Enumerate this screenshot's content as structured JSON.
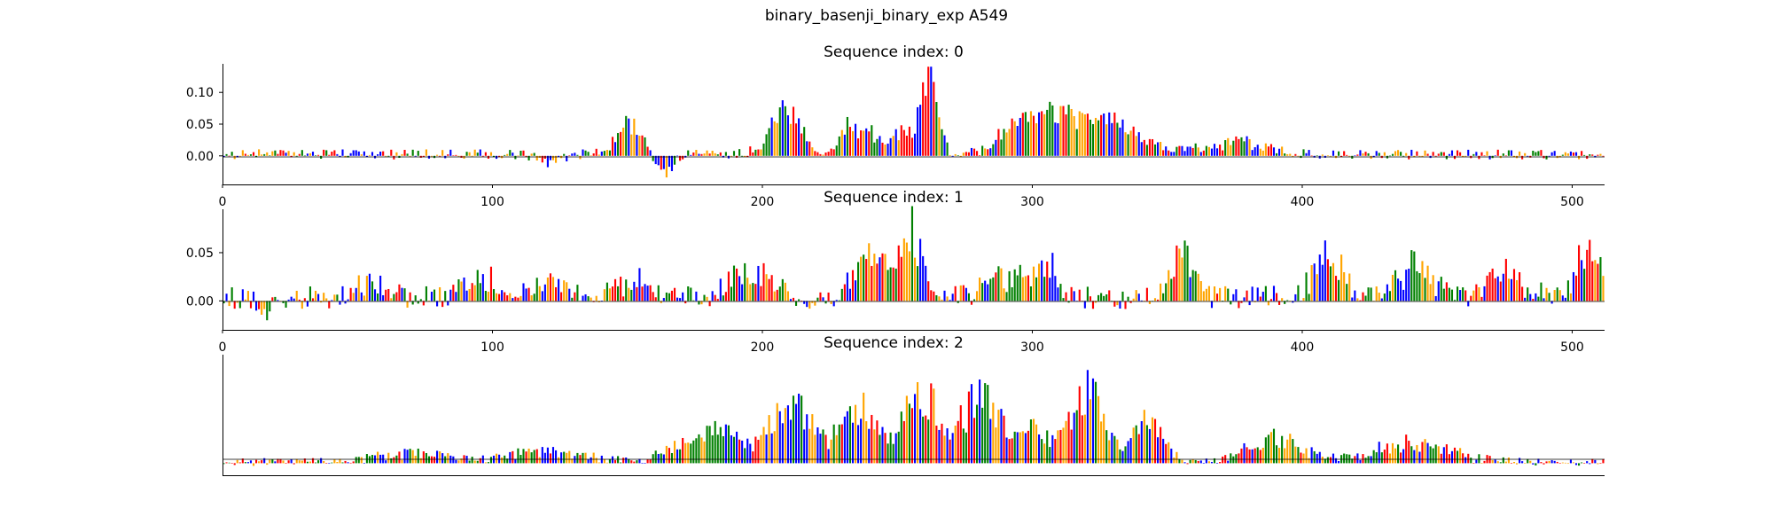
{
  "figure": {
    "title": "binary_basenji_binary_exp A549"
  },
  "colors": {
    "A": "#008000",
    "C": "#0000ff",
    "G": "#ffa500",
    "T": "#ff0000"
  },
  "chart_data": [
    {
      "type": "sequence-logo",
      "title": "Sequence index: 0",
      "xlim": [
        0,
        512
      ],
      "ylim": [
        -0.045,
        0.145
      ],
      "xticks": [
        0,
        100,
        200,
        300,
        400,
        500
      ],
      "xtick_labels": [
        "0",
        "100",
        "200",
        "300",
        "400",
        "500"
      ],
      "yticks": [
        0.0,
        0.05,
        0.1
      ],
      "ytick_labels": [
        "0.00",
        "0.05",
        "0.10"
      ],
      "peaks": [
        {
          "x": 120,
          "h": -0.018,
          "w": 6
        },
        {
          "x": 150,
          "h": 0.075,
          "w": 6
        },
        {
          "x": 163,
          "h": -0.04,
          "w": 4
        },
        {
          "x": 208,
          "h": 0.09,
          "w": 8
        },
        {
          "x": 235,
          "h": 0.07,
          "w": 8
        },
        {
          "x": 255,
          "h": 0.06,
          "w": 8
        },
        {
          "x": 262,
          "h": 0.135,
          "w": 4
        },
        {
          "x": 295,
          "h": 0.07,
          "w": 10
        },
        {
          "x": 310,
          "h": 0.075,
          "w": 10
        },
        {
          "x": 325,
          "h": 0.065,
          "w": 10
        },
        {
          "x": 340,
          "h": 0.03,
          "w": 15
        },
        {
          "x": 375,
          "h": 0.025,
          "w": 15
        }
      ],
      "base_noise": 0.008,
      "seed": 11
    },
    {
      "type": "sequence-logo",
      "title": "Sequence index: 1",
      "xlim": [
        0,
        512
      ],
      "ylim": [
        -0.03,
        0.095
      ],
      "xticks": [
        0,
        100,
        200,
        300,
        400,
        500
      ],
      "xtick_labels": [
        "0",
        "100",
        "200",
        "300",
        "400",
        "500"
      ],
      "yticks": [
        0.0,
        0.05
      ],
      "ytick_labels": [
        "0.00",
        "0.05"
      ],
      "peaks": [
        {
          "x": 15,
          "h": -0.025,
          "w": 3
        },
        {
          "x": 55,
          "h": 0.02,
          "w": 8
        },
        {
          "x": 95,
          "h": 0.03,
          "w": 8
        },
        {
          "x": 120,
          "h": 0.028,
          "w": 8
        },
        {
          "x": 150,
          "h": 0.025,
          "w": 10
        },
        {
          "x": 195,
          "h": 0.04,
          "w": 10
        },
        {
          "x": 240,
          "h": 0.06,
          "w": 8
        },
        {
          "x": 255,
          "h": 0.09,
          "w": 6
        },
        {
          "x": 290,
          "h": 0.035,
          "w": 10
        },
        {
          "x": 305,
          "h": 0.05,
          "w": 6
        },
        {
          "x": 355,
          "h": 0.06,
          "w": 6
        },
        {
          "x": 410,
          "h": 0.055,
          "w": 8
        },
        {
          "x": 440,
          "h": 0.04,
          "w": 10
        },
        {
          "x": 475,
          "h": 0.035,
          "w": 10
        },
        {
          "x": 505,
          "h": 0.065,
          "w": 6
        }
      ],
      "base_noise": 0.012,
      "seed": 23
    },
    {
      "type": "sequence-logo",
      "title": "Sequence index: 2",
      "xlim": [
        0,
        512
      ],
      "ylim": [
        -0.012,
        0.108
      ],
      "xticks": [],
      "xtick_labels": [],
      "yticks": [],
      "ytick_labels": [],
      "peaks": [
        {
          "x": 70,
          "h": 0.012,
          "w": 20
        },
        {
          "x": 120,
          "h": 0.016,
          "w": 20
        },
        {
          "x": 180,
          "h": 0.045,
          "w": 15
        },
        {
          "x": 210,
          "h": 0.085,
          "w": 10
        },
        {
          "x": 235,
          "h": 0.075,
          "w": 10
        },
        {
          "x": 258,
          "h": 0.1,
          "w": 8
        },
        {
          "x": 280,
          "h": 0.09,
          "w": 10
        },
        {
          "x": 300,
          "h": 0.04,
          "w": 10
        },
        {
          "x": 320,
          "h": 0.095,
          "w": 8
        },
        {
          "x": 342,
          "h": 0.06,
          "w": 8
        },
        {
          "x": 390,
          "h": 0.03,
          "w": 15
        },
        {
          "x": 440,
          "h": 0.025,
          "w": 20
        }
      ],
      "base_noise": 0.004,
      "seed": 37
    }
  ]
}
